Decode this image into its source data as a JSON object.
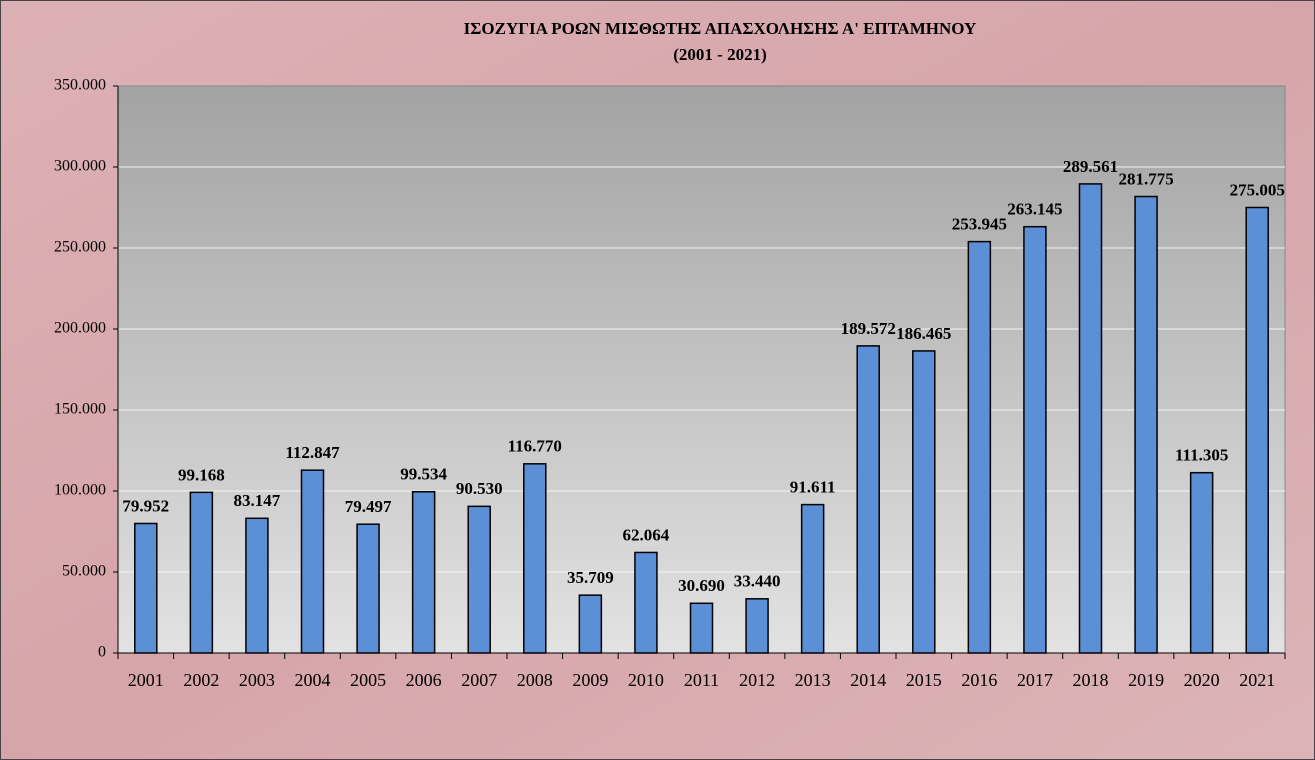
{
  "chart_data": {
    "type": "bar",
    "title": "ΙΣΟΖΥΓΙΑ ΡΟΩΝ ΜΙΣΘΩΤΗΣ ΑΠΑΣΧΟΛΗΣΗΣ Α' ΕΠΤΑΜΗΝΟΥ",
    "subtitle": "(2001 - 2021)",
    "categories": [
      "2001",
      "2002",
      "2003",
      "2004",
      "2005",
      "2006",
      "2007",
      "2008",
      "2009",
      "2010",
      "2011",
      "2012",
      "2013",
      "2014",
      "2015",
      "2016",
      "2017",
      "2018",
      "2019",
      "2020",
      "2021"
    ],
    "values": [
      79952,
      99168,
      83147,
      112847,
      79497,
      99534,
      90530,
      116770,
      35709,
      62064,
      30690,
      33440,
      91611,
      189572,
      186465,
      253945,
      263145,
      289561,
      281775,
      111305,
      275005
    ],
    "value_labels": [
      "79.952",
      "99.168",
      "83.147",
      "112.847",
      "79.497",
      "99.534",
      "90.530",
      "116.770",
      "35.709",
      "62.064",
      "30.690",
      "33.440",
      "91.611",
      "189.572",
      "186.465",
      "253.945",
      "263.145",
      "289.561",
      "281.775",
      "111.305",
      "275.005"
    ],
    "color": "#5b8fd6",
    "ylim": [
      0,
      350000
    ],
    "yticks": [
      0,
      {
        "value": 50000,
        "label": "50.000"
      },
      {
        "value": 100000,
        "label": "100.000"
      },
      {
        "value": 150000,
        "label": "150.000"
      },
      {
        "value": 200000,
        "label": "200.000"
      },
      {
        "value": 250000,
        "label": "250.000"
      },
      {
        "value": 300000,
        "label": "300.000"
      },
      {
        "value": 350000,
        "label": "350.000"
      }
    ],
    "grid": true
  }
}
